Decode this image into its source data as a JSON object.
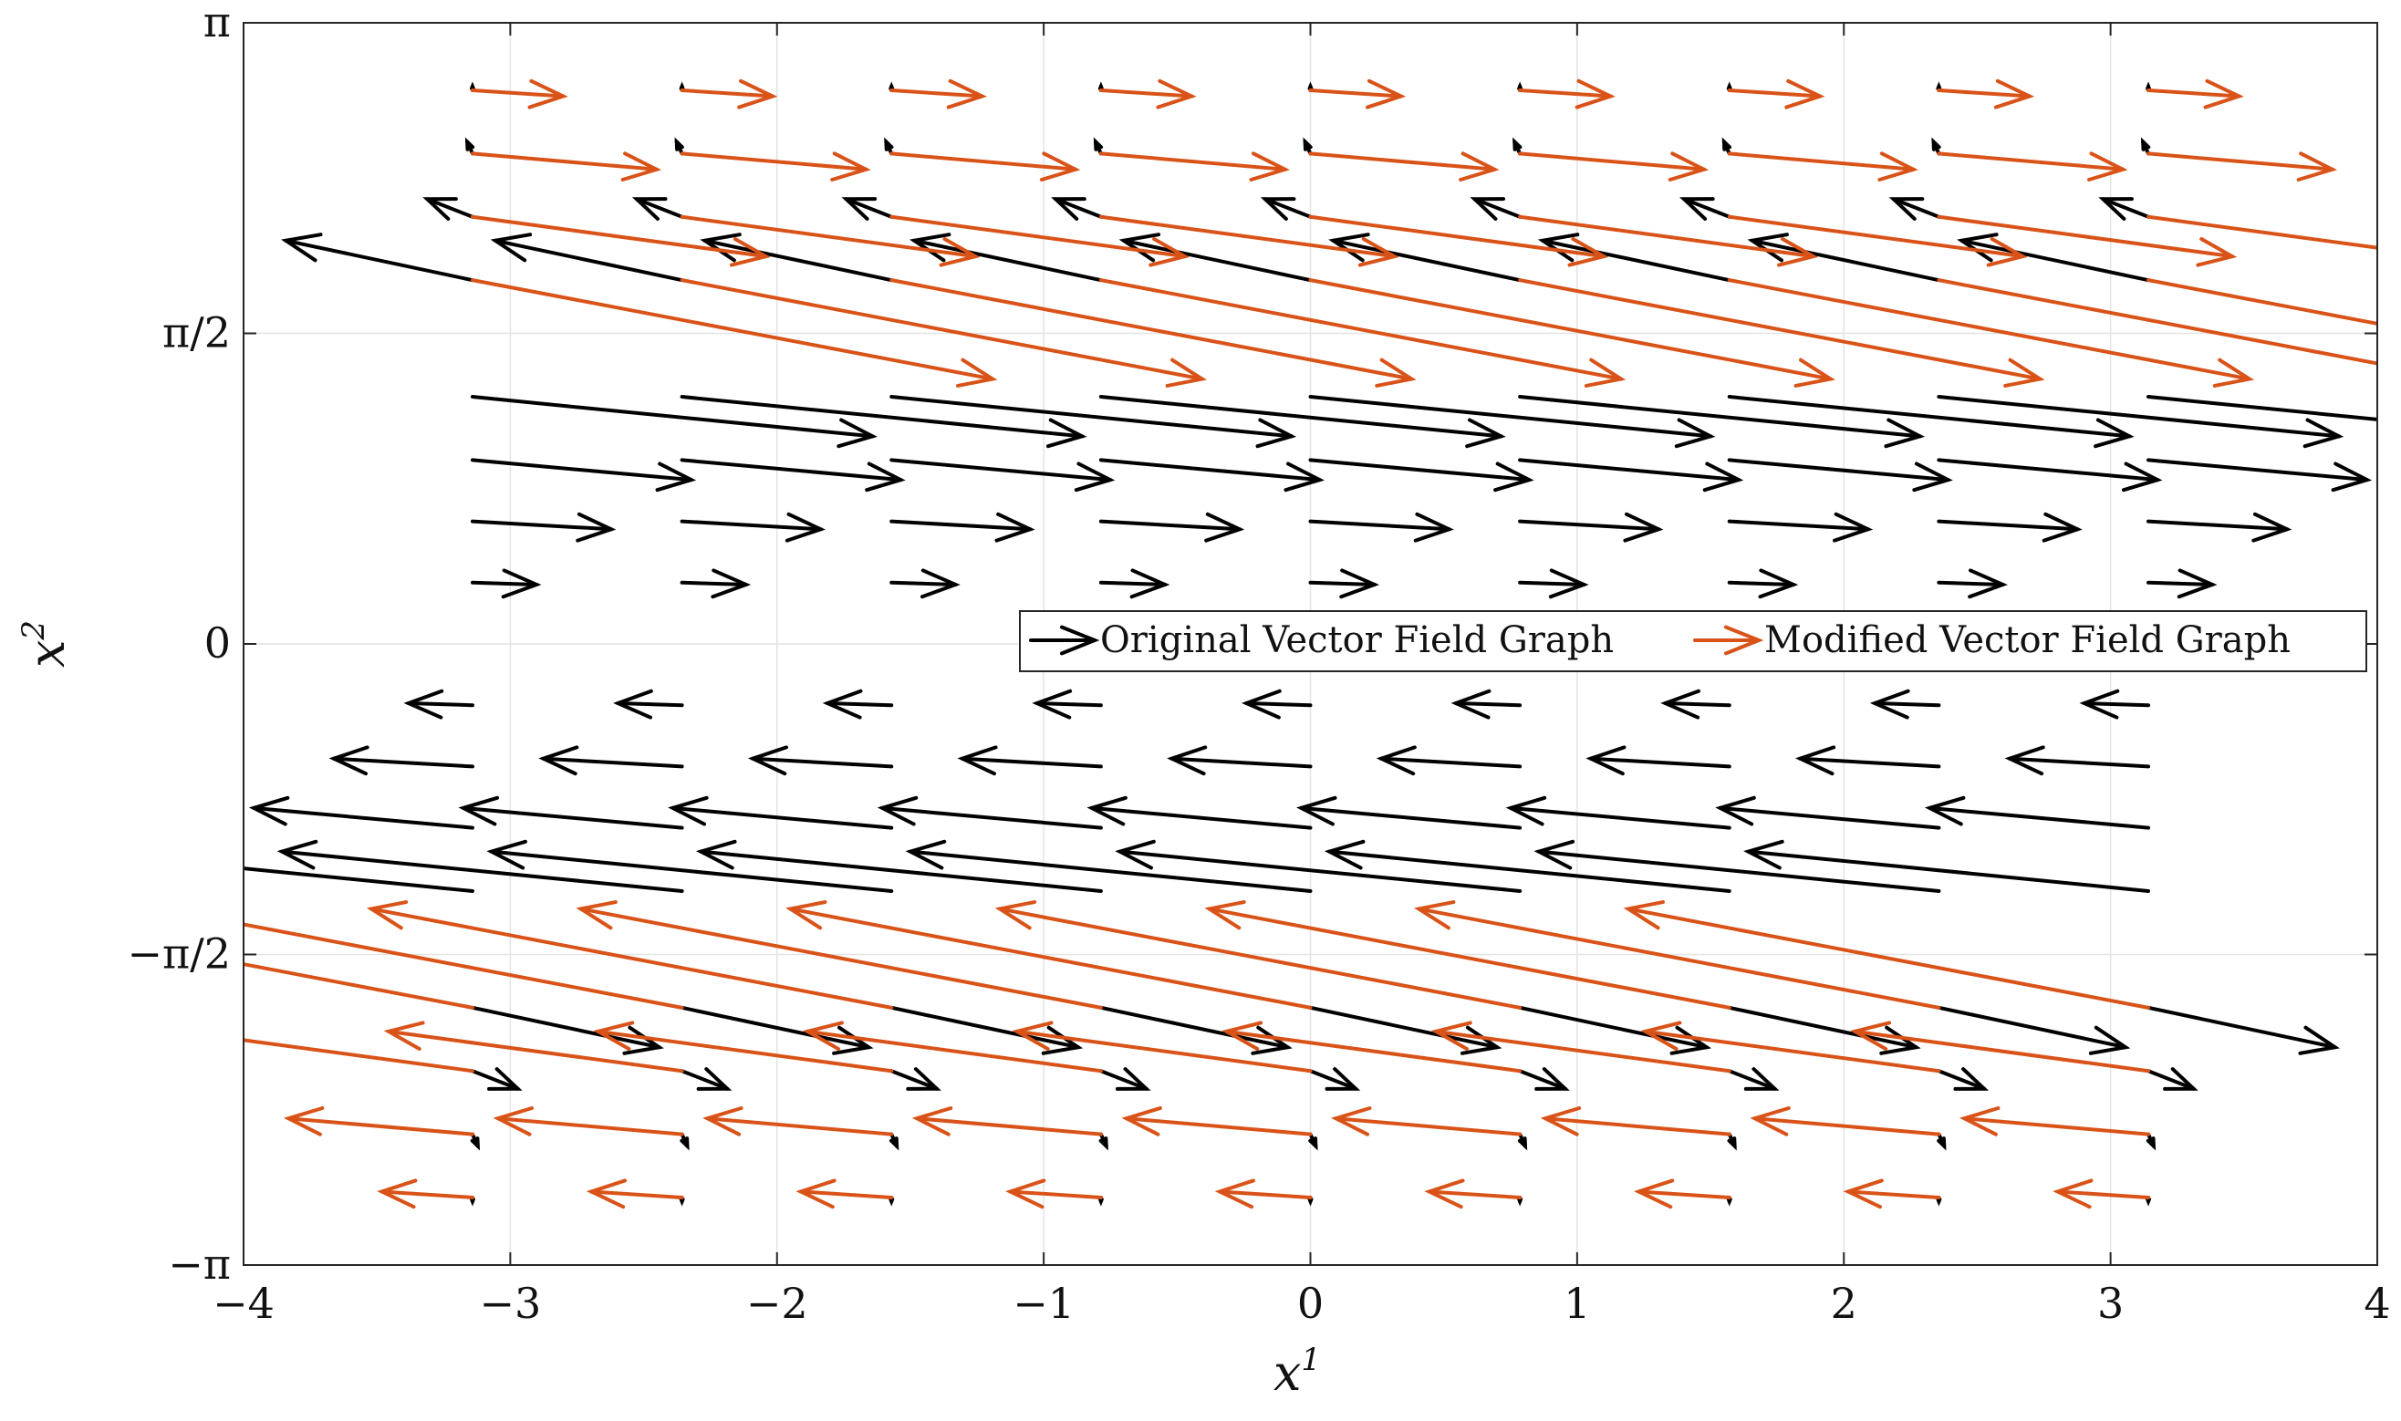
{
  "chart_data": {
    "type": "quiver",
    "xlabel": "x",
    "xlabel_sup": "1",
    "ylabel": "x",
    "ylabel_sup": "2",
    "xlim": [
      -4,
      4
    ],
    "ylim": [
      -3.14159,
      3.14159
    ],
    "xticks": [
      -4,
      -3,
      -2,
      -1,
      0,
      1,
      2,
      3,
      4
    ],
    "xtick_labels": [
      "−4",
      "−3",
      "−2",
      "−1",
      "0",
      "1",
      "2",
      "3",
      "4"
    ],
    "yticks": [
      -3.14159,
      -1.5708,
      0,
      1.5708,
      3.14159
    ],
    "ytick_labels": [
      "−π",
      "−π/2",
      "0",
      "π/2",
      "π"
    ],
    "grid": true,
    "legend_placement": "center-right",
    "grid_x": [
      -3.1416,
      -2.3562,
      -1.5708,
      -0.7854,
      0,
      0.7854,
      1.5708,
      2.3562,
      3.1416
    ],
    "grid_y": [
      2.8,
      2.48,
      2.16,
      1.84,
      1.57,
      1.25,
      0.93,
      0.62,
      0.31,
      -0.31,
      -0.62,
      -0.93,
      -1.25,
      -1.57,
      -1.84,
      -2.16,
      -2.48,
      -2.8
    ],
    "series": [
      {
        "name": "Original Vector Field Graph",
        "color": "#000000",
        "arrows": [
          {
            "y": 2.8,
            "dx": 0.0,
            "dy": 0.02
          },
          {
            "y": 2.48,
            "dx": -0.02,
            "dy": 0.06
          },
          {
            "y": 2.16,
            "dx": -0.17,
            "dy": 0.09
          },
          {
            "y": 1.84,
            "dx": -0.7,
            "dy": 0.2
          },
          {
            "y": 1.25,
            "dx": 1.5,
            "dy": -0.2
          },
          {
            "y": 0.93,
            "dx": 0.82,
            "dy": -0.1
          },
          {
            "y": 0.62,
            "dx": 0.52,
            "dy": -0.04
          },
          {
            "y": 0.31,
            "dx": 0.24,
            "dy": -0.01
          },
          {
            "y": -0.31,
            "dx": -0.24,
            "dy": 0.01
          },
          {
            "y": -0.62,
            "dx": -0.52,
            "dy": 0.04
          },
          {
            "y": -0.93,
            "dx": -0.82,
            "dy": 0.1
          },
          {
            "y": -1.25,
            "dx": -1.5,
            "dy": 0.2
          },
          {
            "y": -1.84,
            "dx": 0.7,
            "dy": -0.2
          },
          {
            "y": -2.16,
            "dx": 0.17,
            "dy": -0.09
          },
          {
            "y": -2.48,
            "dx": 0.02,
            "dy": -0.06
          },
          {
            "y": -2.8,
            "dx": 0.0,
            "dy": -0.02
          }
        ]
      },
      {
        "name": "Modified Vector Field Graph",
        "color": "#D95319",
        "arrows": [
          {
            "y": 2.8,
            "dx": 0.34,
            "dy": -0.03
          },
          {
            "y": 2.48,
            "dx": 0.69,
            "dy": -0.08
          },
          {
            "y": 2.16,
            "dx": 1.1,
            "dy": -0.2
          },
          {
            "y": 1.84,
            "dx": 1.95,
            "dy": -0.5
          },
          {
            "y": -1.84,
            "dx": -1.95,
            "dy": 0.5
          },
          {
            "y": -2.16,
            "dx": -1.1,
            "dy": 0.2
          },
          {
            "y": -2.48,
            "dx": -0.69,
            "dy": 0.08
          },
          {
            "y": -2.8,
            "dx": -0.34,
            "dy": 0.03
          }
        ]
      }
    ]
  }
}
